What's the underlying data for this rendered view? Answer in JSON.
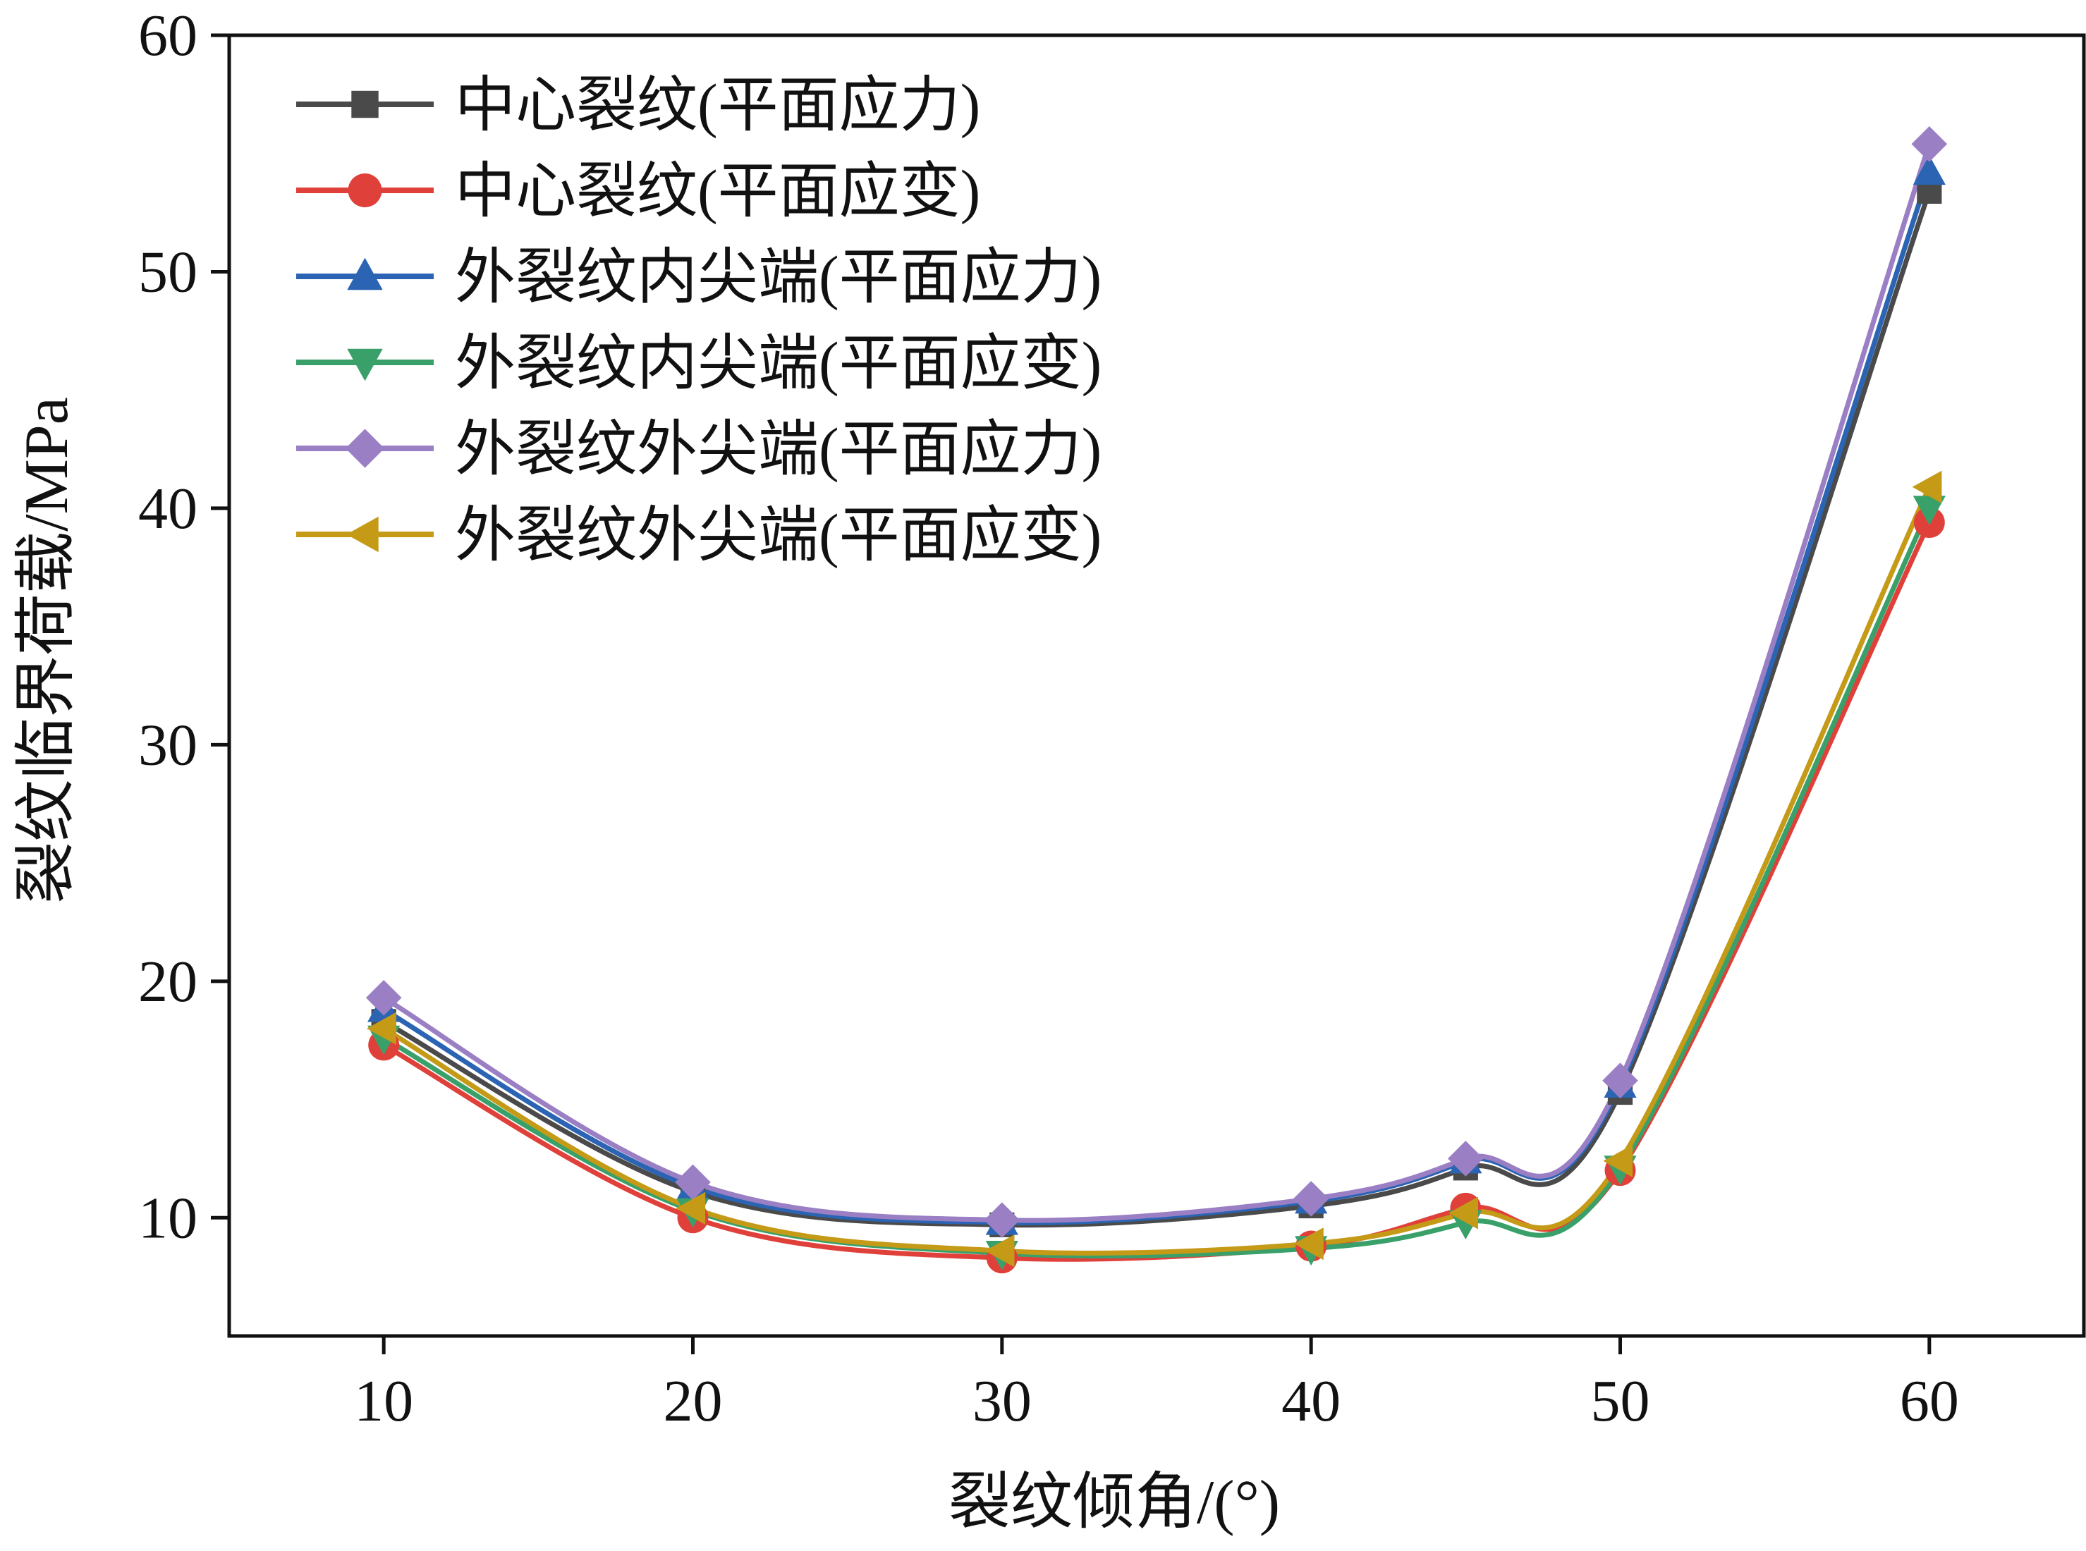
{
  "chart_data": {
    "type": "line",
    "xlabel": "裂纹倾角/(°)",
    "ylabel": "裂纹临界荷载/MPa",
    "x": [
      10,
      20,
      30,
      40,
      45,
      50,
      60
    ],
    "xlim": [
      5,
      65
    ],
    "ylim": [
      5,
      60
    ],
    "xticks": [
      10,
      20,
      30,
      40,
      50,
      60
    ],
    "yticks": [
      10,
      20,
      30,
      40,
      50,
      60
    ],
    "grid": false,
    "legend_position": "top-left",
    "series": [
      {
        "name": "中心裂纹(平面应力)",
        "color": "#4a4a4a",
        "marker": "square",
        "values": [
          18.3,
          11.1,
          9.7,
          10.5,
          12.1,
          15.3,
          53.4
        ]
      },
      {
        "name": "中心裂纹(平面应变)",
        "color": "#e0403a",
        "marker": "circle",
        "values": [
          17.3,
          10.0,
          8.3,
          8.8,
          10.4,
          12.0,
          39.4
        ]
      },
      {
        "name": "外裂纹内尖端(平面应力)",
        "color": "#2b64b3",
        "marker": "triangle-up",
        "values": [
          18.8,
          11.3,
          9.8,
          10.7,
          12.4,
          15.6,
          54.2
        ]
      },
      {
        "name": "外裂纹内尖端(平面应变)",
        "color": "#3aa06a",
        "marker": "triangle-down",
        "values": [
          17.6,
          10.3,
          8.5,
          8.7,
          9.8,
          12.1,
          40.0
        ]
      },
      {
        "name": "外裂纹外尖端(平面应力)",
        "color": "#9b7fc4",
        "marker": "diamond",
        "values": [
          19.3,
          11.5,
          9.9,
          10.8,
          12.5,
          15.8,
          55.4
        ]
      },
      {
        "name": "外裂纹外尖端(平面应变)",
        "color": "#c49a17",
        "marker": "triangle-left",
        "values": [
          18.0,
          10.4,
          8.6,
          8.9,
          10.2,
          12.4,
          40.9
        ]
      }
    ]
  }
}
